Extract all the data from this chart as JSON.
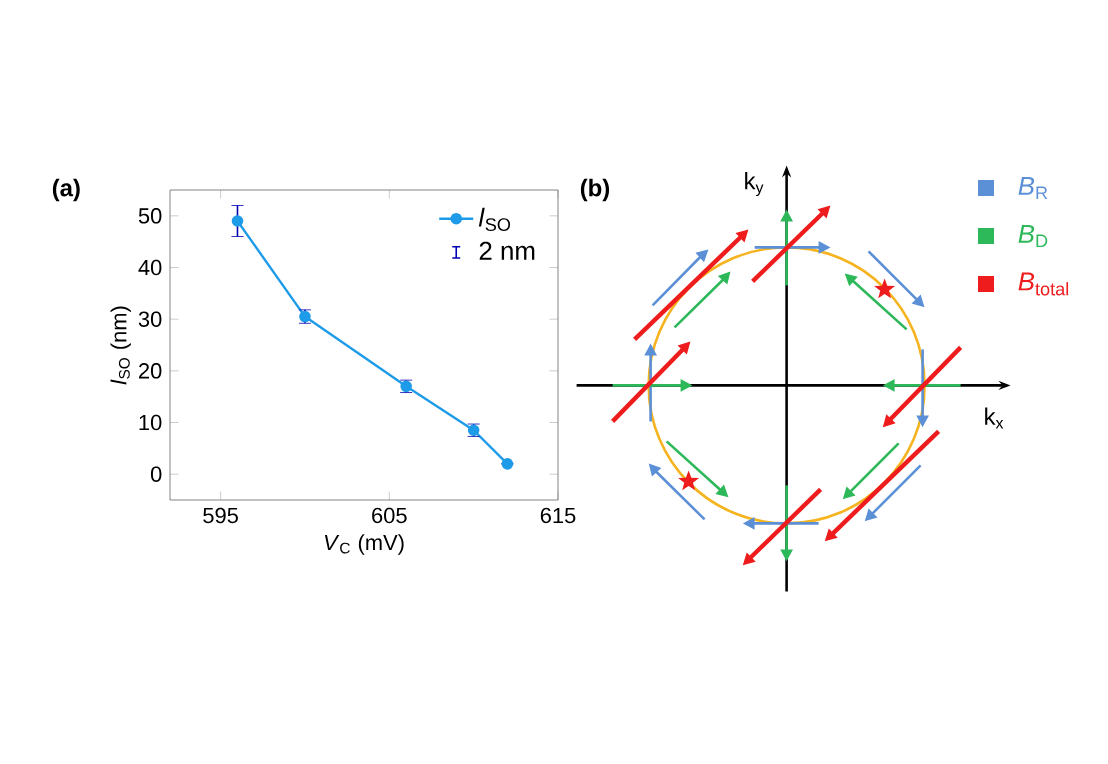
{
  "chart_data": [
    {
      "type": "line",
      "title": "(a)",
      "xlabel": "*V*$_{C}$ (mV)",
      "ylabel": "*l*$_{SO}$ (nm)",
      "x": [
        596,
        600,
        606,
        610,
        612
      ],
      "series": [
        {
          "name": "*l*$_{SO}$",
          "color": "#1e9be8",
          "values": [
            49,
            30.5,
            17,
            8.5,
            2
          ],
          "errors": [
            3,
            1.3,
            1.2,
            1.2,
            null
          ]
        }
      ],
      "annotations": [
        "2 nm"
      ],
      "xlim": [
        592,
        615
      ],
      "xticks": [
        595,
        605,
        615
      ],
      "ylim": [
        -5,
        55
      ],
      "yticks": [
        0,
        10,
        20,
        30,
        40,
        50
      ],
      "marker": "circle",
      "legend": "top right"
    },
    {
      "type": "other",
      "title": "(b)",
      "xlabel": "k$_{x}$",
      "ylabel": "k$_{y}$",
      "series": [
        {
          "name": "*B*$_{R}$",
          "color": "#5b8fd6"
        },
        {
          "name": "*B*$_{D}$",
          "color": "#2db85a"
        },
        {
          "name": "*B*$_{total}$",
          "color": "#ee1c1c"
        }
      ],
      "legend": "top right"
    }
  ]
}
